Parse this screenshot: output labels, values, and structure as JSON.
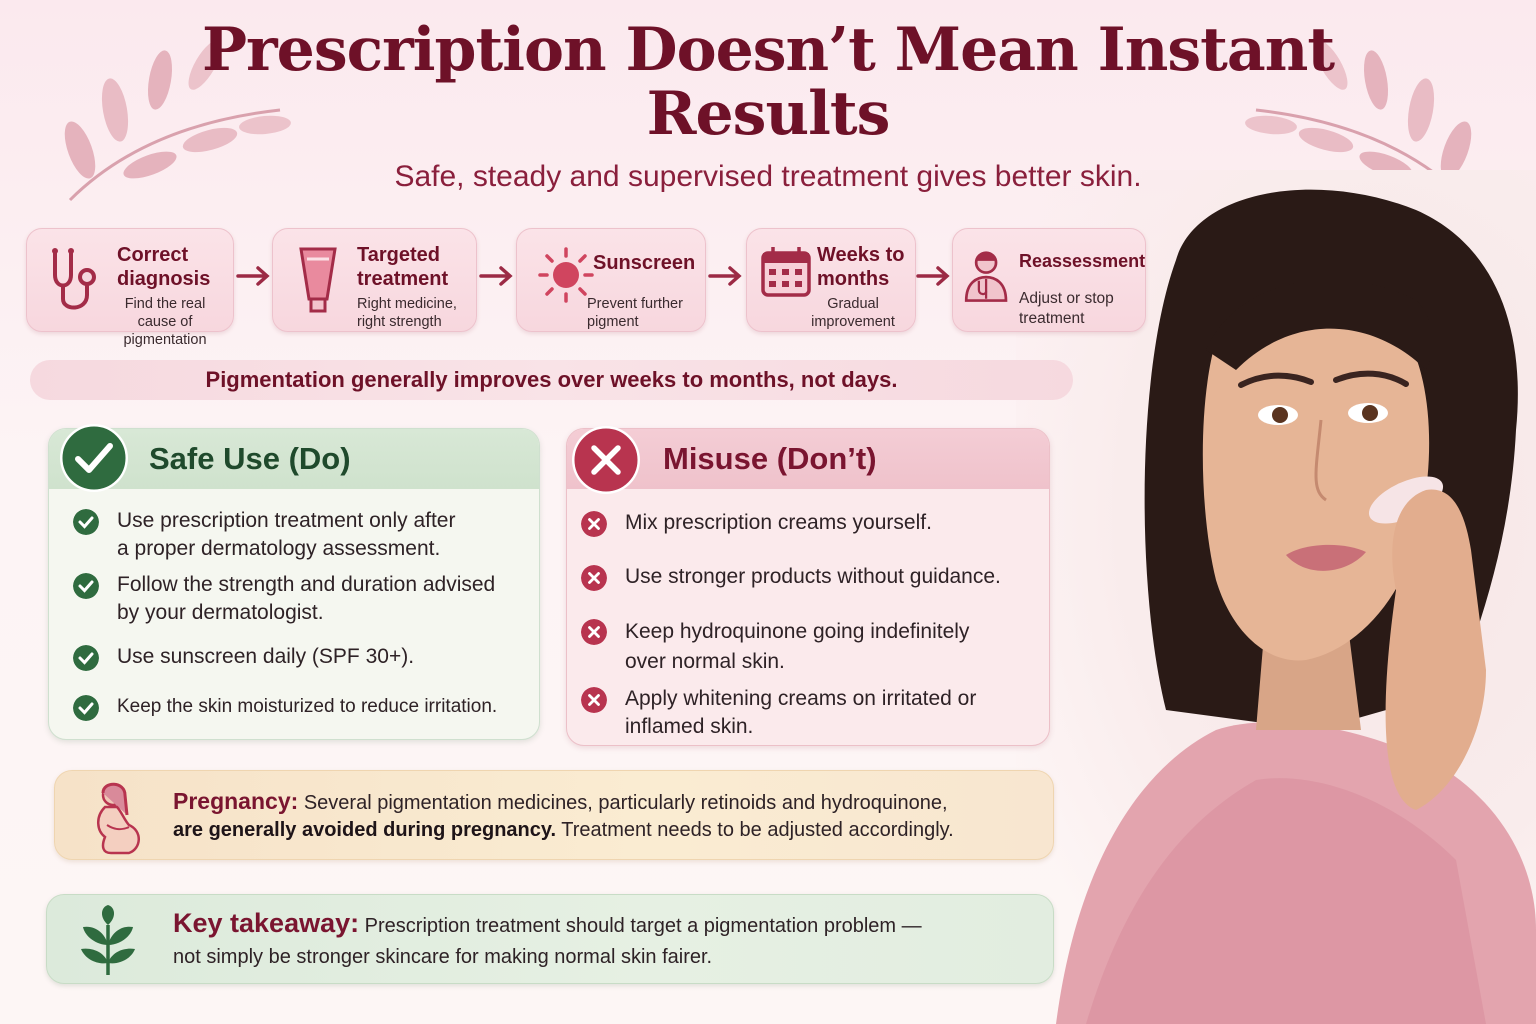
{
  "title": {
    "line1": "Prescription Doesn’t Mean Instant",
    "line2": "Results"
  },
  "subtitle": "Safe, steady and supervised treatment gives better skin.",
  "steps": [
    {
      "title1": "Correct",
      "title2": "diagnosis",
      "desc1": "Find the real",
      "desc2": "cause of pigmentation",
      "icon": "stethoscope-icon"
    },
    {
      "title1": "Targeted",
      "title2": "treatment",
      "desc1": "Right medicine,",
      "desc2": "right strength",
      "icon": "cream-tube-icon"
    },
    {
      "title1": "Sunscreen",
      "title2": "",
      "desc1": "Prevent further",
      "desc2": "pigment",
      "icon": "sun-icon"
    },
    {
      "title1": "Weeks to",
      "title2": "months",
      "desc1": "Gradual",
      "desc2": "improvement",
      "icon": "calendar-icon"
    },
    {
      "title1": "Reassessment",
      "title2": "",
      "desc1": "Adjust or stop",
      "desc2": "treatment",
      "icon": "doctor-icon"
    }
  ],
  "banner": "Pigmentation generally improves over weeks to months, not days.",
  "safe_use": {
    "title": "Safe Use (Do)",
    "items": [
      {
        "l1": "Use prescription treatment only after",
        "l2": "a proper dermatology assessment."
      },
      {
        "l1": "Follow the strength and duration advised",
        "l2": "by your dermatologist."
      },
      {
        "l1": "Use sunscreen daily (SPF 30+).",
        "l2": ""
      },
      {
        "l1": "Keep the skin moisturized to reduce irritation.",
        "l2": ""
      }
    ]
  },
  "misuse": {
    "title": "Misuse (Don’t)",
    "items": [
      {
        "l1": "Mix prescription creams yourself.",
        "l2": ""
      },
      {
        "l1": "Use stronger products without guidance.",
        "l2": ""
      },
      {
        "l1": "Keep hydroquinone going indefinitely",
        "l2": "over normal skin."
      },
      {
        "l1": "Apply whitening creams on irritated or",
        "l2": "inflamed skin."
      }
    ]
  },
  "pregnancy": {
    "label": "Pregnancy:",
    "text1": " Several pigmentation medicines, particularly retinoids and hydroquinone,",
    "bold2": "are generally avoided during pregnancy.",
    "text2": " Treatment needs to be adjusted accordingly."
  },
  "takeaway": {
    "label": "Key takeaway:",
    "text1": " Prescription treatment should target a pigmentation problem —",
    "text2": "not simply be stronger skincare for making normal skin fairer."
  },
  "colors": {
    "maroon": "#6e1128",
    "green": "#2f6b3f",
    "red": "#b8344f",
    "pink_card": "#f7d7de"
  }
}
